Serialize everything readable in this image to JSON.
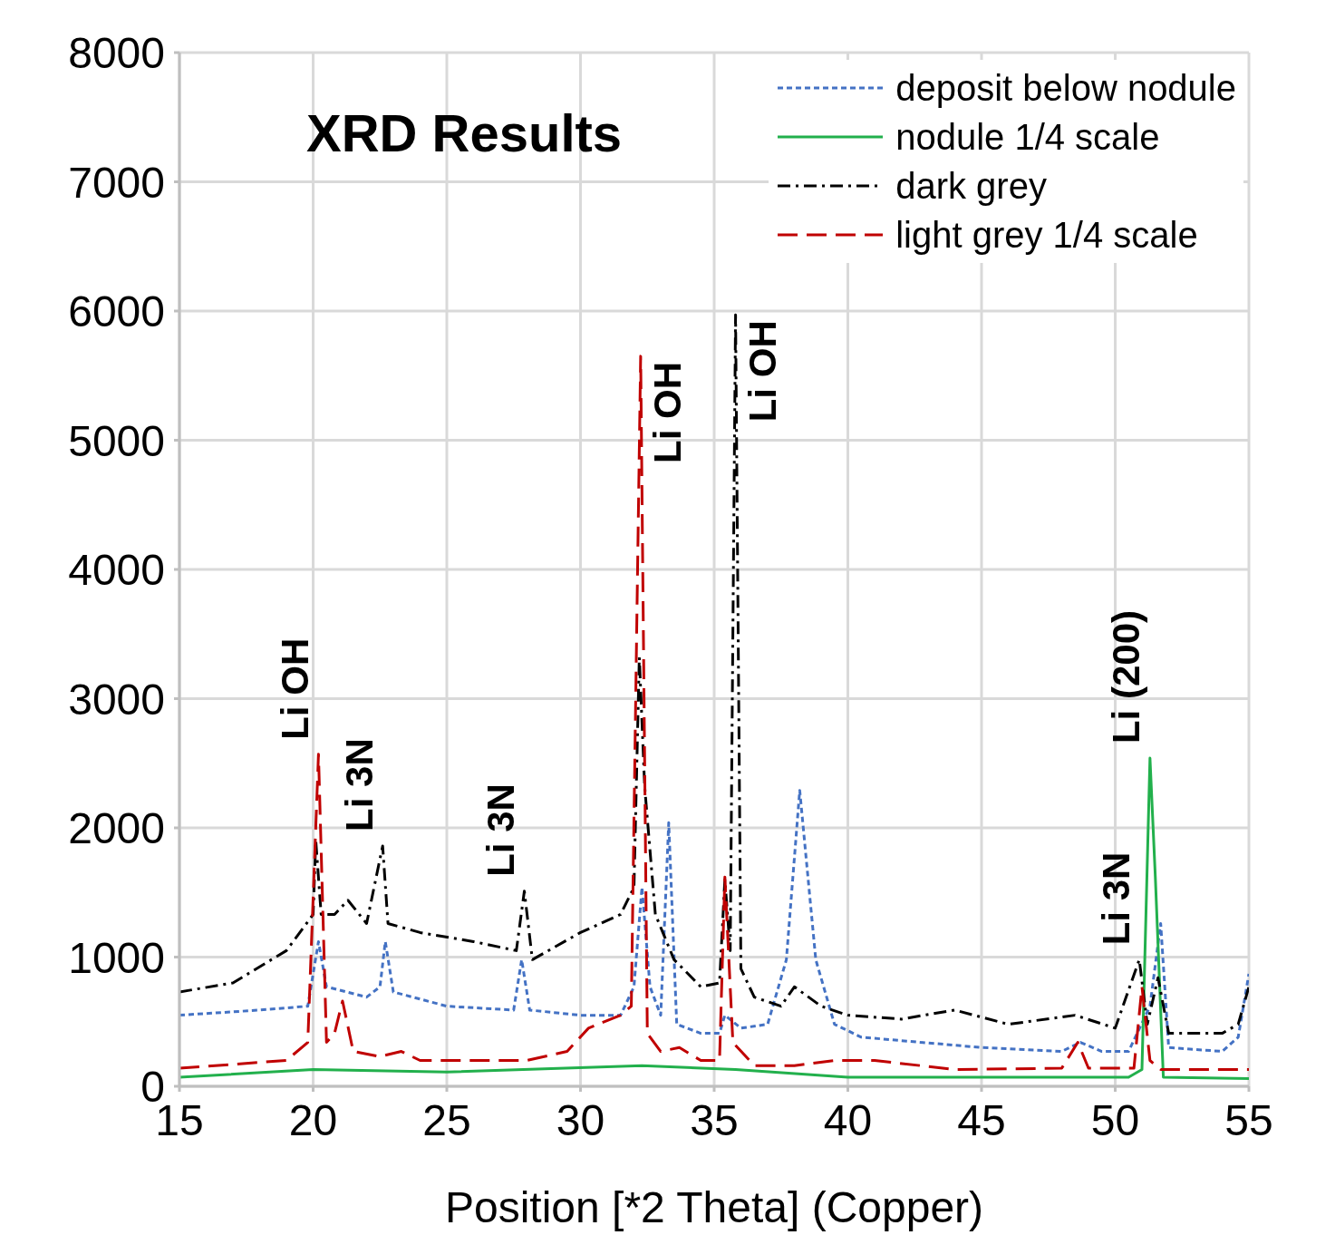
{
  "chart_data": {
    "type": "line",
    "title": "XRD Results",
    "xlabel": "Position [*2 Theta]  (Copper)",
    "xlim": [
      15,
      55
    ],
    "xticks": [
      15,
      20,
      25,
      30,
      35,
      40,
      45,
      50,
      55
    ],
    "ylim": [
      0,
      8000
    ],
    "yticks": [
      0,
      1000,
      2000,
      3000,
      4000,
      5000,
      6000,
      7000,
      8000
    ],
    "grid": true,
    "legend": "top right",
    "marker": "none",
    "series": [
      {
        "name": "deposit below nodule",
        "color": "#4472c4",
        "line_style": "dotted",
        "x": [
          15,
          18,
          19.8,
          20.2,
          20.5,
          22,
          22.5,
          22.7,
          23,
          25,
          27.5,
          27.8,
          28.1,
          30,
          31.5,
          32,
          32.3,
          32.6,
          33,
          33.3,
          33.6,
          34.5,
          35.2,
          35.4,
          36,
          37,
          37.7,
          38.2,
          38.8,
          39.5,
          40.5,
          45,
          48,
          48.7,
          49.5,
          50.5,
          51.3,
          51.7,
          52,
          54,
          54.6,
          55
        ],
        "values": [
          550,
          590,
          620,
          1120,
          770,
          690,
          770,
          1120,
          730,
          620,
          590,
          980,
          590,
          550,
          550,
          770,
          1540,
          770,
          550,
          2040,
          480,
          410,
          410,
          550,
          450,
          480,
          980,
          2290,
          980,
          480,
          380,
          300,
          270,
          340,
          270,
          270,
          620,
          1260,
          300,
          270,
          380,
          870
        ]
      },
      {
        "name": "nodule 1/4 scale",
        "color": "#22b04c",
        "line_style": "solid",
        "x": [
          15,
          20,
          25,
          32.3,
          35.8,
          40,
          50.5,
          51,
          51.3,
          51.5,
          51.8,
          55
        ],
        "values": [
          70,
          130,
          110,
          160,
          130,
          70,
          70,
          130,
          2540,
          1620,
          70,
          60
        ]
      },
      {
        "name": "dark grey",
        "color": "#000000",
        "line_style": "dashdot",
        "x": [
          15,
          17,
          19,
          20,
          20.1,
          20.3,
          20.8,
          21.3,
          22,
          22.6,
          22.8,
          24,
          26,
          27.6,
          27.9,
          28.2,
          30,
          31.5,
          32,
          32.2,
          32.4,
          32.8,
          33.5,
          34.5,
          35.2,
          35.4,
          35.6,
          35.8,
          36,
          36.5,
          37.5,
          38,
          39,
          40,
          42,
          44,
          46,
          48.5,
          50,
          50.9,
          51.2,
          51.6,
          52,
          54,
          54.6,
          55
        ],
        "values": [
          730,
          800,
          1050,
          1330,
          1900,
          1330,
          1330,
          1440,
          1260,
          1860,
          1260,
          1190,
          1120,
          1050,
          1510,
          980,
          1190,
          1330,
          1540,
          3320,
          2320,
          1330,
          980,
          770,
          800,
          1600,
          1050,
          5970,
          910,
          690,
          620,
          770,
          620,
          550,
          520,
          590,
          480,
          550,
          450,
          980,
          480,
          840,
          410,
          410,
          480,
          770
        ]
      },
      {
        "name": "light grey 1/4 scale",
        "color": "#c00000",
        "line_style": "dashed",
        "x": [
          15,
          19,
          19.8,
          20.2,
          20.5,
          20.8,
          21.1,
          21.5,
          22.5,
          23.3,
          24,
          28,
          29.5,
          30.3,
          31.5,
          31.9,
          32.25,
          32.5,
          33,
          33.7,
          34.5,
          35.2,
          35.4,
          35.7,
          36.5,
          38,
          39.5,
          41,
          44,
          48,
          48.6,
          49,
          50.7,
          51,
          51.3,
          51.7,
          55
        ],
        "values": [
          140,
          200,
          340,
          2570,
          340,
          410,
          660,
          270,
          230,
          270,
          200,
          200,
          270,
          450,
          550,
          620,
          5650,
          410,
          270,
          300,
          200,
          200,
          1620,
          340,
          160,
          160,
          200,
          200,
          130,
          140,
          340,
          140,
          140,
          770,
          200,
          130,
          130
        ]
      }
    ],
    "annotations": [
      {
        "text": "Li OH",
        "x": 20.2,
        "y": 2570
      },
      {
        "text": "Li 3N",
        "x": 22.6,
        "y": 1860
      },
      {
        "text": "Li 3N",
        "x": 27.9,
        "y": 1510
      },
      {
        "text": "Li OH",
        "x": 32.25,
        "y": 5650
      },
      {
        "text": "Li OH",
        "x": 35.8,
        "y": 5970
      },
      {
        "text": "Li 3N",
        "x": 50.9,
        "y": 980
      },
      {
        "text": "Li (200)",
        "x": 51.3,
        "y": 2540
      }
    ]
  }
}
